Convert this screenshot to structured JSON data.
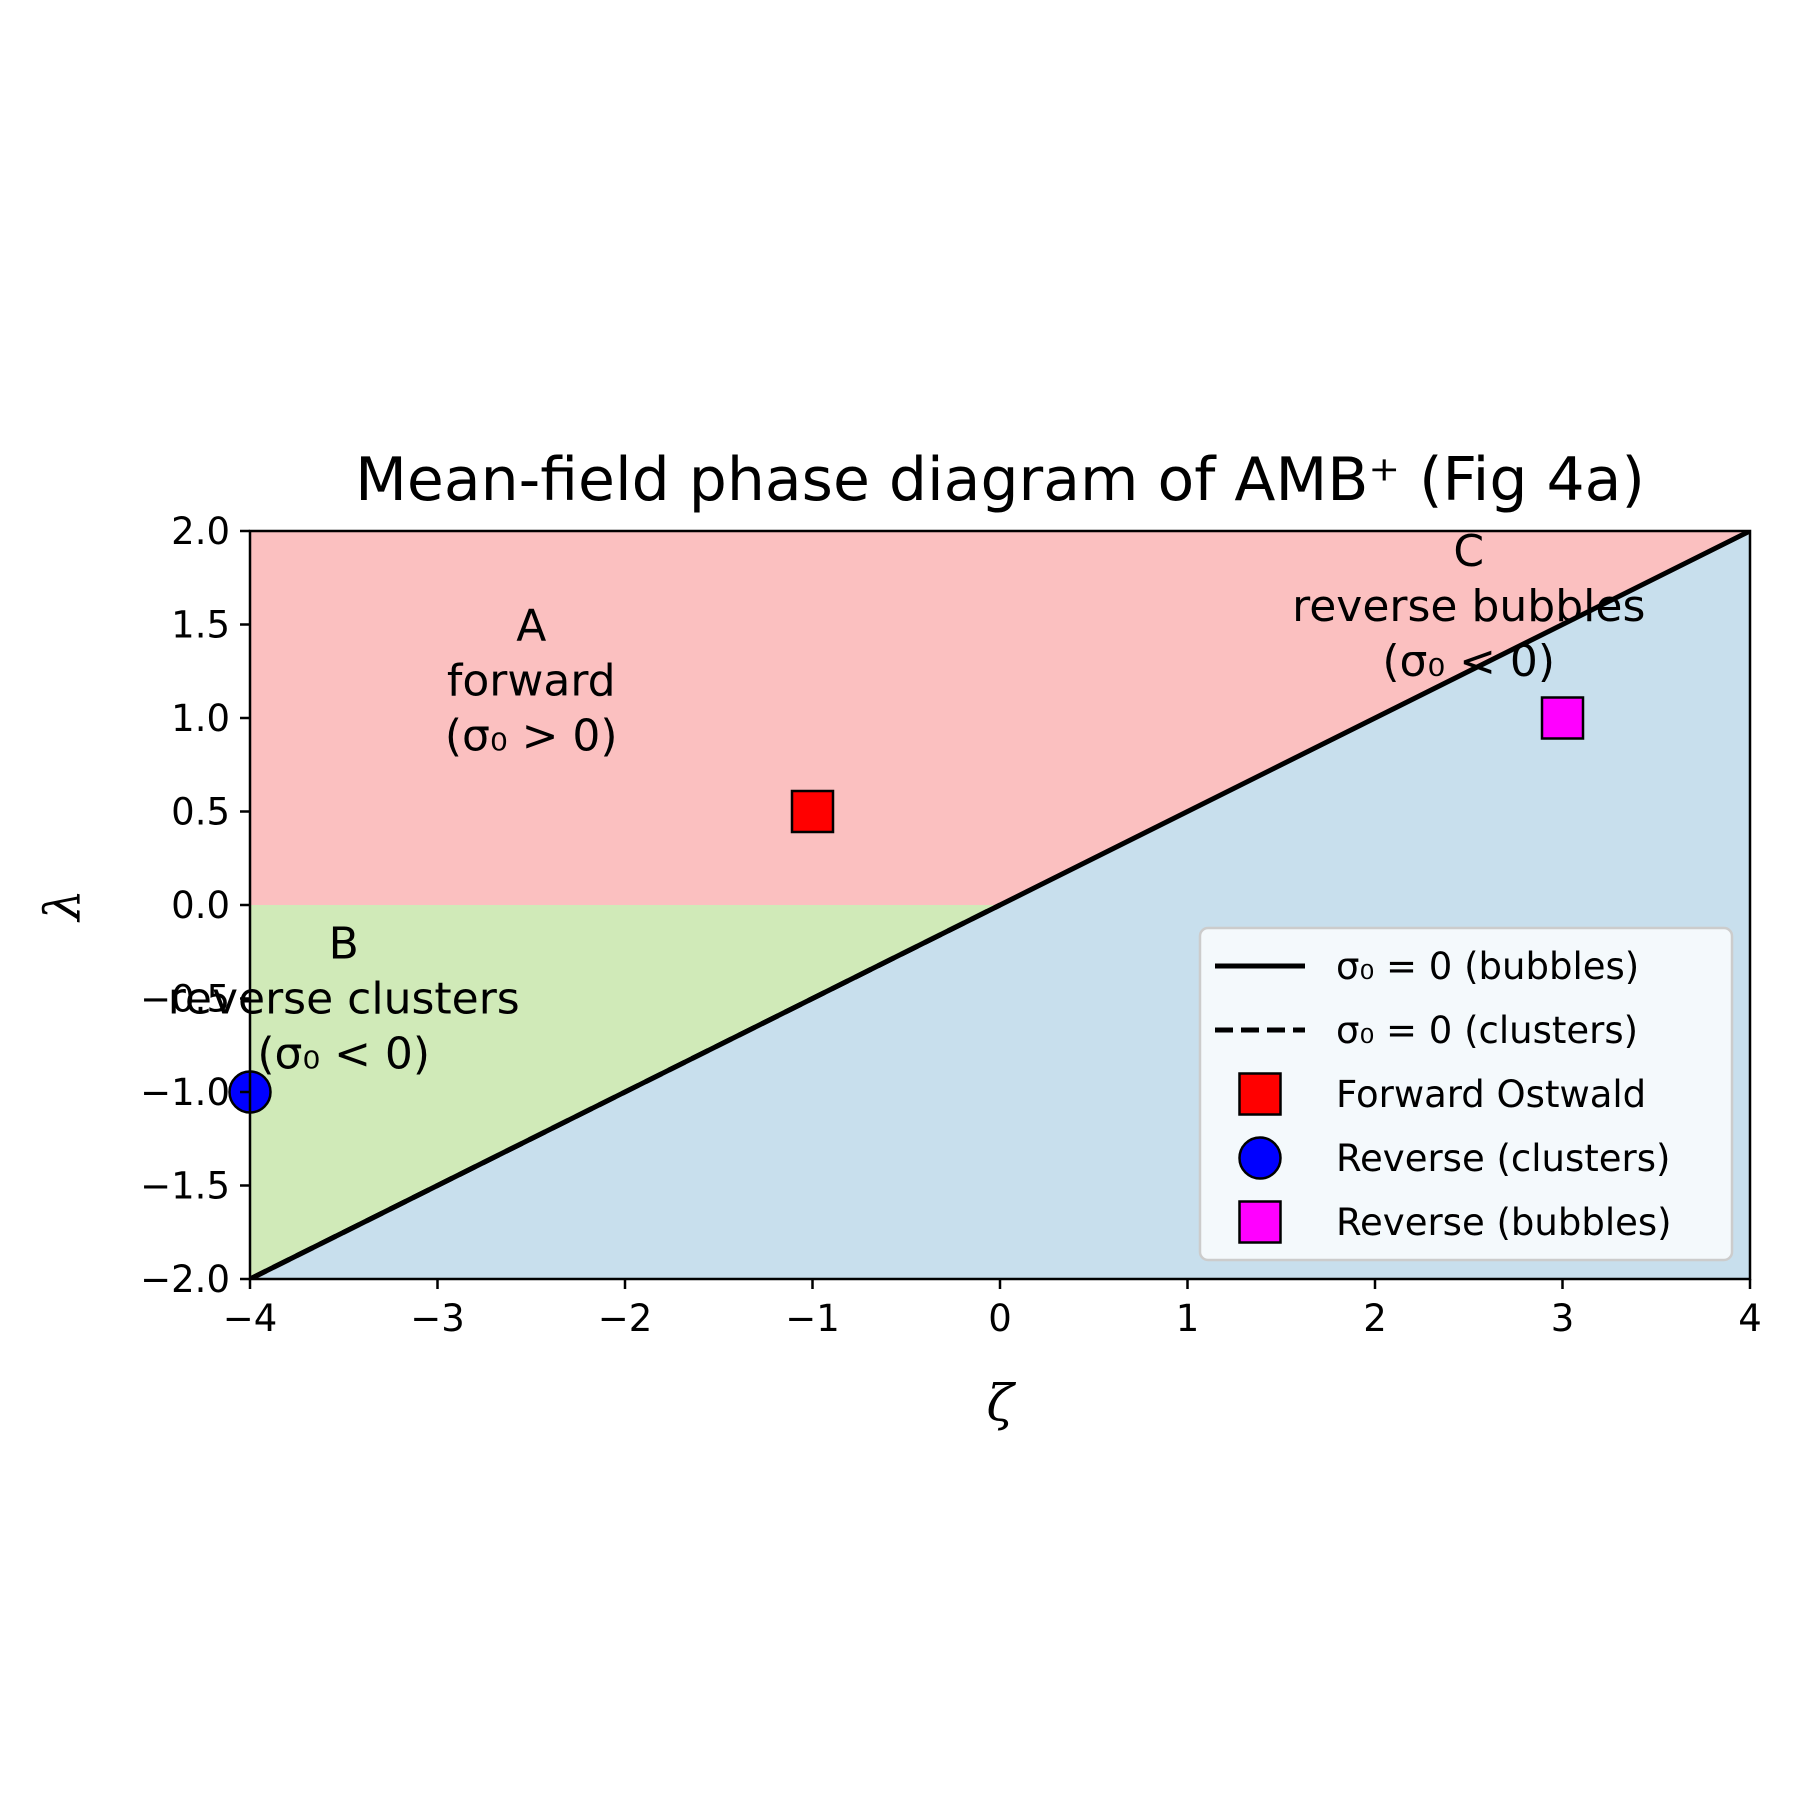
{
  "chart_data": {
    "type": "area",
    "title": "Mean-field phase diagram of AMB⁺ (Fig 4a)",
    "xlabel": "ζ",
    "ylabel": "λ",
    "xlim": [
      -4,
      4
    ],
    "ylim": [
      -2,
      2
    ],
    "xticks": [
      -4,
      -3,
      -2,
      -1,
      0,
      1,
      2,
      3,
      4
    ],
    "xtick_labels": [
      "−4",
      "−3",
      "−2",
      "−1",
      "0",
      "1",
      "2",
      "3",
      "4"
    ],
    "yticks": [
      2.0,
      1.5,
      1.0,
      0.5,
      0.0,
      -0.5,
      -1.0,
      -1.5,
      -2.0
    ],
    "ytick_labels": [
      "2.0",
      "1.5",
      "1.0",
      "0.5",
      "0.0",
      "−0.5",
      "−1.0",
      "−1.5",
      "−2.0"
    ],
    "grid": false,
    "legend_position": "lower-right",
    "regions": [
      {
        "id": "A",
        "color": "#fbc0c0",
        "lines": [
          "A",
          "forward",
          "(σ₀ > 0)"
        ],
        "label_at": [
          -2.5,
          1.2
        ],
        "polygon": [
          [
            -4,
            0
          ],
          [
            -4,
            2
          ],
          [
            4,
            2
          ],
          [
            0,
            0
          ]
        ]
      },
      {
        "id": "B",
        "color": "#d0eab8",
        "lines": [
          "B",
          "reverse clusters",
          "(σ₀ < 0)"
        ],
        "label_at": [
          -3.5,
          -0.5
        ],
        "polygon": [
          [
            -4,
            -2
          ],
          [
            -4,
            0
          ],
          [
            0,
            0
          ]
        ]
      },
      {
        "id": "C",
        "color": "#c8dfed",
        "lines": [
          "C",
          "reverse bubbles",
          "(σ₀ < 0)"
        ],
        "label_at": [
          2.5,
          1.6
        ],
        "polygon": [
          [
            -4,
            -2
          ],
          [
            4,
            2
          ],
          [
            4,
            -2
          ]
        ]
      }
    ],
    "series": [
      {
        "name": "σ₀ = 0 (bubbles)",
        "kind": "line",
        "style": "solid",
        "color": "#000000",
        "x": [
          -4,
          4
        ],
        "y": [
          -2,
          2
        ]
      },
      {
        "name": "σ₀ = 0 (clusters)",
        "kind": "line",
        "style": "dashed",
        "color": "#000000",
        "x": [
          -4,
          0
        ],
        "y": [
          -2,
          0
        ]
      },
      {
        "name": "Forward Ostwald",
        "kind": "marker",
        "marker": "square",
        "color": "#ff0000",
        "x": [
          -1
        ],
        "y": [
          0.5
        ]
      },
      {
        "name": "Reverse (clusters)",
        "kind": "marker",
        "marker": "circle",
        "color": "#0000ff",
        "x": [
          -4
        ],
        "y": [
          -1
        ]
      },
      {
        "name": "Reverse (bubbles)",
        "kind": "marker",
        "marker": "square",
        "color": "#ff00ff",
        "x": [
          3
        ],
        "y": [
          1
        ]
      }
    ]
  }
}
